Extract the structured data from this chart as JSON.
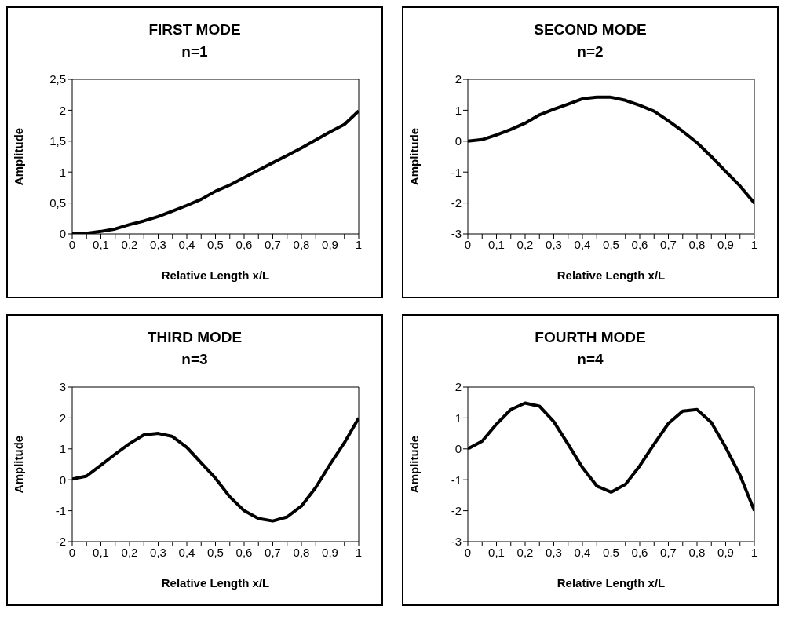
{
  "chart_data": [
    {
      "type": "line",
      "title": "FIRST MODE",
      "subtitle": "n=1",
      "xlabel": "Relative Length x/L",
      "ylabel": "Amplitude",
      "x": [
        0,
        0.05,
        0.1,
        0.15,
        0.2,
        0.25,
        0.3,
        0.35,
        0.4,
        0.45,
        0.5,
        0.55,
        0.6,
        0.65,
        0.7,
        0.75,
        0.8,
        0.85,
        0.9,
        0.95,
        1
      ],
      "series": [
        {
          "color": "#000000",
          "values": [
            0,
            0.01,
            0.04,
            0.08,
            0.15,
            0.21,
            0.28,
            0.37,
            0.46,
            0.56,
            0.69,
            0.79,
            0.91,
            1.03,
            1.15,
            1.27,
            1.39,
            1.52,
            1.65,
            1.77,
            1.99
          ]
        }
      ],
      "xlim": [
        0,
        1
      ],
      "xticks": [
        {
          "value": 0,
          "label": "0"
        },
        {
          "value": 0.05,
          "label": null
        },
        {
          "value": 0.1,
          "label": "0,1"
        },
        {
          "value": 0.15,
          "label": null
        },
        {
          "value": 0.2,
          "label": "0,2"
        },
        {
          "value": 0.25,
          "label": null
        },
        {
          "value": 0.3,
          "label": "0,3"
        },
        {
          "value": 0.35,
          "label": null
        },
        {
          "value": 0.4,
          "label": "0,4"
        },
        {
          "value": 0.45,
          "label": null
        },
        {
          "value": 0.5,
          "label": "0,5"
        },
        {
          "value": 0.55,
          "label": null
        },
        {
          "value": 0.6,
          "label": "0,6"
        },
        {
          "value": 0.65,
          "label": null
        },
        {
          "value": 0.7,
          "label": "0,7"
        },
        {
          "value": 0.75,
          "label": null
        },
        {
          "value": 0.8,
          "label": "0,8"
        },
        {
          "value": 0.85,
          "label": null
        },
        {
          "value": 0.9,
          "label": "0,9"
        },
        {
          "value": 0.95,
          "label": null
        },
        {
          "value": 1,
          "label": "1"
        }
      ],
      "ylim": [
        0,
        2.5
      ],
      "yticks": [
        {
          "value": 0,
          "label": "0"
        },
        {
          "value": 0.5,
          "label": "0,5"
        },
        {
          "value": 1,
          "label": "1"
        },
        {
          "value": 1.5,
          "label": "1,5"
        },
        {
          "value": 2,
          "label": "2"
        },
        {
          "value": 2.5,
          "label": "2,5"
        }
      ]
    },
    {
      "type": "line",
      "title": "SECOND MODE",
      "subtitle": "n=2",
      "xlabel": "Relative Length x/L",
      "ylabel": "Amplitude",
      "x": [
        0,
        0.05,
        0.1,
        0.15,
        0.2,
        0.25,
        0.3,
        0.35,
        0.4,
        0.45,
        0.5,
        0.55,
        0.6,
        0.65,
        0.7,
        0.75,
        0.8,
        0.85,
        0.9,
        0.95,
        1
      ],
      "series": [
        {
          "color": "#000000",
          "values": [
            0,
            0.05,
            0.2,
            0.38,
            0.58,
            0.85,
            1.03,
            1.2,
            1.37,
            1.42,
            1.42,
            1.32,
            1.16,
            0.97,
            0.66,
            0.32,
            -0.05,
            -0.5,
            -0.98,
            -1.45,
            -2.0
          ]
        }
      ],
      "xlim": [
        0,
        1
      ],
      "xticks": [
        {
          "value": 0,
          "label": "0"
        },
        {
          "value": 0.05,
          "label": null
        },
        {
          "value": 0.1,
          "label": "0,1"
        },
        {
          "value": 0.15,
          "label": null
        },
        {
          "value": 0.2,
          "label": "0,2"
        },
        {
          "value": 0.25,
          "label": null
        },
        {
          "value": 0.3,
          "label": "0,3"
        },
        {
          "value": 0.35,
          "label": null
        },
        {
          "value": 0.4,
          "label": "0,4"
        },
        {
          "value": 0.45,
          "label": null
        },
        {
          "value": 0.5,
          "label": "0,5"
        },
        {
          "value": 0.55,
          "label": null
        },
        {
          "value": 0.6,
          "label": "0,6"
        },
        {
          "value": 0.65,
          "label": null
        },
        {
          "value": 0.7,
          "label": "0,7"
        },
        {
          "value": 0.75,
          "label": null
        },
        {
          "value": 0.8,
          "label": "0,8"
        },
        {
          "value": 0.85,
          "label": null
        },
        {
          "value": 0.9,
          "label": "0,9"
        },
        {
          "value": 0.95,
          "label": null
        },
        {
          "value": 1,
          "label": "1"
        }
      ],
      "ylim": [
        -3,
        2
      ],
      "yticks": [
        -3,
        -2,
        -1,
        0,
        1,
        2
      ]
    },
    {
      "type": "line",
      "title": "THIRD MODE",
      "subtitle": "n=3",
      "xlabel": "Relative Length x/L",
      "ylabel": "Amplitude",
      "x": [
        0,
        0.05,
        0.1,
        0.15,
        0.2,
        0.25,
        0.3,
        0.35,
        0.4,
        0.45,
        0.5,
        0.55,
        0.6,
        0.65,
        0.7,
        0.75,
        0.8,
        0.85,
        0.9,
        0.95,
        1
      ],
      "series": [
        {
          "color": "#000000",
          "values": [
            0.02,
            0.12,
            0.47,
            0.83,
            1.17,
            1.45,
            1.5,
            1.4,
            1.05,
            0.55,
            0.05,
            -0.55,
            -1.0,
            -1.25,
            -1.33,
            -1.2,
            -0.85,
            -0.25,
            0.5,
            1.2,
            2.0
          ]
        }
      ],
      "xlim": [
        0,
        1
      ],
      "xticks": [
        {
          "value": 0,
          "label": "0"
        },
        {
          "value": 0.05,
          "label": null
        },
        {
          "value": 0.1,
          "label": "0,1"
        },
        {
          "value": 0.15,
          "label": null
        },
        {
          "value": 0.2,
          "label": "0,2"
        },
        {
          "value": 0.25,
          "label": null
        },
        {
          "value": 0.3,
          "label": "0,3"
        },
        {
          "value": 0.35,
          "label": null
        },
        {
          "value": 0.4,
          "label": "0,4"
        },
        {
          "value": 0.45,
          "label": null
        },
        {
          "value": 0.5,
          "label": "0,5"
        },
        {
          "value": 0.55,
          "label": null
        },
        {
          "value": 0.6,
          "label": "0,6"
        },
        {
          "value": 0.65,
          "label": null
        },
        {
          "value": 0.7,
          "label": "0,7"
        },
        {
          "value": 0.75,
          "label": null
        },
        {
          "value": 0.8,
          "label": "0,8"
        },
        {
          "value": 0.85,
          "label": null
        },
        {
          "value": 0.9,
          "label": "0,9"
        },
        {
          "value": 0.95,
          "label": null
        },
        {
          "value": 1,
          "label": "1"
        }
      ],
      "ylim": [
        -2,
        3
      ],
      "yticks": [
        -2,
        -1,
        0,
        1,
        2,
        3
      ]
    },
    {
      "type": "line",
      "title": "FOURTH MODE",
      "subtitle": "n=4",
      "xlabel": "Relative Length x/L",
      "ylabel": "Amplitude",
      "x": [
        0,
        0.05,
        0.1,
        0.15,
        0.2,
        0.25,
        0.3,
        0.35,
        0.4,
        0.45,
        0.5,
        0.55,
        0.6,
        0.65,
        0.7,
        0.75,
        0.8,
        0.85,
        0.9,
        0.95,
        1
      ],
      "series": [
        {
          "color": "#000000",
          "values": [
            0,
            0.25,
            0.8,
            1.27,
            1.48,
            1.38,
            0.88,
            0.15,
            -0.6,
            -1.2,
            -1.4,
            -1.15,
            -0.55,
            0.15,
            0.82,
            1.22,
            1.27,
            0.85,
            0.05,
            -0.85,
            -2.0
          ]
        }
      ],
      "xlim": [
        0,
        1
      ],
      "xticks": [
        {
          "value": 0,
          "label": "0"
        },
        {
          "value": 0.05,
          "label": null
        },
        {
          "value": 0.1,
          "label": "0,1"
        },
        {
          "value": 0.15,
          "label": null
        },
        {
          "value": 0.2,
          "label": "0,2"
        },
        {
          "value": 0.25,
          "label": null
        },
        {
          "value": 0.3,
          "label": "0,3"
        },
        {
          "value": 0.35,
          "label": null
        },
        {
          "value": 0.4,
          "label": "0,4"
        },
        {
          "value": 0.45,
          "label": null
        },
        {
          "value": 0.5,
          "label": "0,5"
        },
        {
          "value": 0.55,
          "label": null
        },
        {
          "value": 0.6,
          "label": "0,6"
        },
        {
          "value": 0.65,
          "label": null
        },
        {
          "value": 0.7,
          "label": "0,7"
        },
        {
          "value": 0.75,
          "label": null
        },
        {
          "value": 0.8,
          "label": "0,8"
        },
        {
          "value": 0.85,
          "label": null
        },
        {
          "value": 0.9,
          "label": "0,9"
        },
        {
          "value": 0.95,
          "label": null
        },
        {
          "value": 1,
          "label": "1"
        }
      ],
      "ylim": [
        -3,
        2
      ],
      "yticks": [
        -3,
        -2,
        -1,
        0,
        1,
        2
      ]
    }
  ]
}
